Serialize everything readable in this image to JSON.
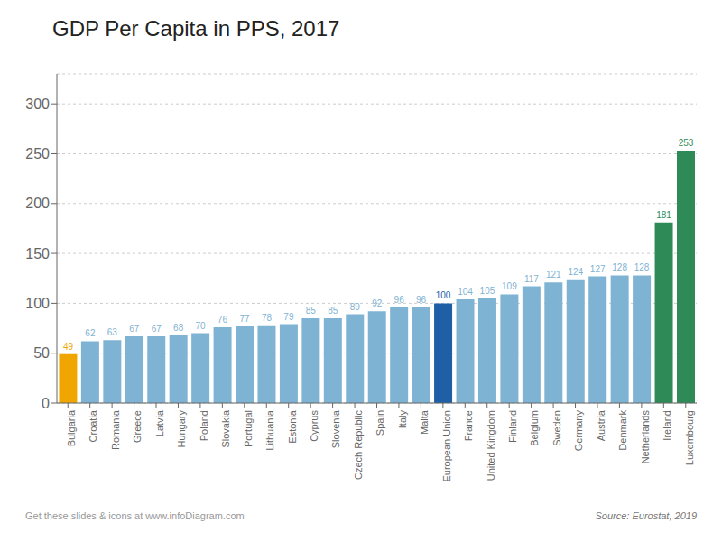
{
  "chart_data": {
    "type": "bar",
    "title": "GDP Per Capita in PPS, 2017",
    "categories": [
      "Bulgaria",
      "Croatia",
      "Romania",
      "Greece",
      "Latvia",
      "Hungary",
      "Poland",
      "Slovakia",
      "Portugal",
      "Lithuania",
      "Estonia",
      "Cyprus",
      "Slovenia",
      "Czech Republic",
      "Spain",
      "Italy",
      "Malta",
      "European Union",
      "France",
      "United Kingdom",
      "Finland",
      "Belgium",
      "Sweden",
      "Germany",
      "Austria",
      "Denmark",
      "Netherlands",
      "Ireland",
      "Luxembourg"
    ],
    "values": [
      49,
      62,
      63,
      67,
      67,
      68,
      70,
      76,
      77,
      78,
      79,
      85,
      85,
      89,
      92,
      96,
      96,
      100,
      104,
      105,
      109,
      117,
      121,
      124,
      127,
      128,
      128,
      181,
      253
    ],
    "colors": [
      "#f0a500",
      "#7fb3d3",
      "#7fb3d3",
      "#7fb3d3",
      "#7fb3d3",
      "#7fb3d3",
      "#7fb3d3",
      "#7fb3d3",
      "#7fb3d3",
      "#7fb3d3",
      "#7fb3d3",
      "#7fb3d3",
      "#7fb3d3",
      "#7fb3d3",
      "#7fb3d3",
      "#7fb3d3",
      "#7fb3d3",
      "#1f5fa6",
      "#7fb3d3",
      "#7fb3d3",
      "#7fb3d3",
      "#7fb3d3",
      "#7fb3d3",
      "#7fb3d3",
      "#7fb3d3",
      "#7fb3d3",
      "#7fb3d3",
      "#2e8b57",
      "#2e8b57"
    ],
    "ylim": [
      0,
      330
    ],
    "yticks": [
      0,
      50,
      100,
      150,
      200,
      250,
      300
    ],
    "grid": true,
    "data_labels": true,
    "annotations": [
      "Get these slides & icons at www.infoDiagram.com",
      "Source: Eurostat, 2019"
    ]
  }
}
